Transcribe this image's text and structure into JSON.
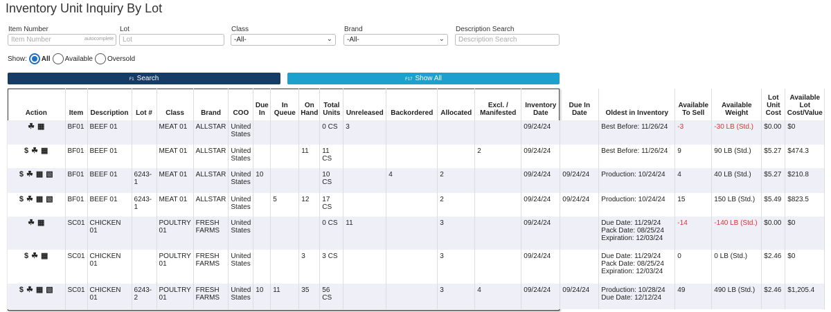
{
  "page_title": "Inventory Unit Inquiry By Lot",
  "filters": {
    "item_number": {
      "label": "Item Number",
      "placeholder": "Item Number",
      "hint": "autocomplete"
    },
    "lot": {
      "label": "Lot",
      "placeholder": "Lot"
    },
    "class": {
      "label": "Class",
      "value": "-All-"
    },
    "brand": {
      "label": "Brand",
      "value": "-All-"
    },
    "description": {
      "label": "Description Search",
      "placeholder": "Description Search"
    }
  },
  "show": {
    "label": "Show:",
    "options": [
      "All",
      "Available",
      "Oversold"
    ]
  },
  "buttons": {
    "search_key": "F1",
    "search": "Search",
    "showall_key": "F17",
    "showall": "Show All"
  },
  "columns": [
    "Action",
    "Item",
    "Description",
    "Lot #",
    "Class",
    "Brand",
    "COO",
    "Due In",
    "In Queue",
    "On Hand",
    "Total Units",
    "Unreleased",
    "Backordered",
    "Allocated",
    "Excl. / Manifested",
    "Inventory Date",
    "Due In Date",
    "Oldest in Inventory",
    "Available To Sell",
    "Available Weight",
    "Lot Unit Cost",
    "Available Lot Cost/Value"
  ],
  "rows": [
    {
      "actions": [
        "link-icon",
        "calendar-icon"
      ],
      "item": "BF01",
      "desc": "BEEF 01",
      "lot": "",
      "class": "MEAT 01",
      "brand": "ALLSTAR",
      "coo": "United States",
      "due_in": "",
      "in_queue": "",
      "on_hand": "",
      "total": "0 CS",
      "unreleased": "3",
      "backordered": "",
      "allocated": "",
      "excl": "",
      "inv_date": "09/24/24",
      "due_date": "",
      "oldest": "Best Before: 11/26/24",
      "ats": "-3",
      "weight": "-30 LB (Std.)",
      "cost": "$0.00",
      "value": "$0",
      "neg": true
    },
    {
      "actions": [
        "dollar-icon",
        "link-icon",
        "calendar-icon"
      ],
      "item": "BF01",
      "desc": "BEEF 01",
      "lot": "",
      "class": "MEAT 01",
      "brand": "ALLSTAR",
      "coo": "United States",
      "due_in": "",
      "in_queue": "",
      "on_hand": "11",
      "total": "11 CS",
      "unreleased": "",
      "backordered": "",
      "allocated": "",
      "excl": "2",
      "inv_date": "09/24/24",
      "due_date": "",
      "oldest": "Best Before: 11/26/24",
      "ats": "9",
      "weight": "90 LB (Std.)",
      "cost": "$5.27",
      "value": "$474.3",
      "neg": false
    },
    {
      "actions": [
        "dollar-icon",
        "link-icon",
        "calendar-icon",
        "calendar-plus-icon"
      ],
      "item": "BF01",
      "desc": "BEEF 01",
      "lot": "6243-1",
      "class": "MEAT 01",
      "brand": "ALLSTAR",
      "coo": "United States",
      "due_in": "10",
      "in_queue": "",
      "on_hand": "",
      "total": "10 CS",
      "unreleased": "",
      "backordered": "4",
      "allocated": "2",
      "excl": "",
      "inv_date": "09/24/24",
      "due_date": "09/24/24",
      "oldest": "Production: 10/24/24",
      "ats": "4",
      "weight": "40 LB (Std.)",
      "cost": "$5.27",
      "value": "$210.8",
      "neg": false
    },
    {
      "actions": [
        "dollar-icon",
        "link-icon",
        "calendar-icon",
        "calendar-plus-icon"
      ],
      "item": "BF01",
      "desc": "BEEF 01",
      "lot": "6243-1",
      "class": "MEAT 01",
      "brand": "ALLSTAR",
      "coo": "United States",
      "due_in": "",
      "in_queue": "5",
      "on_hand": "12",
      "total": "17 CS",
      "unreleased": "",
      "backordered": "",
      "allocated": "2",
      "excl": "",
      "inv_date": "09/24/24",
      "due_date": "09/24/24",
      "oldest": "Production: 10/24/24",
      "ats": "15",
      "weight": "150 LB (Std.)",
      "cost": "$5.49",
      "value": "$823.5",
      "neg": false
    },
    {
      "actions": [
        "link-icon",
        "calendar-icon"
      ],
      "item": "SC01",
      "desc": "CHICKEN 01",
      "lot": "",
      "class": "POULTRY 01",
      "brand": "FRESH FARMS",
      "coo": "United States",
      "due_in": "",
      "in_queue": "",
      "on_hand": "",
      "total": "0 CS",
      "unreleased": "11",
      "backordered": "",
      "allocated": "3",
      "excl": "",
      "inv_date": "09/24/24",
      "due_date": "",
      "oldest": "Due Date: 11/29/24\nPack Date: 08/25/24\nExpiration: 12/03/24",
      "ats": "-14",
      "weight": "-140 LB (Std.)",
      "cost": "$0.00",
      "value": "$0",
      "neg": true
    },
    {
      "actions": [
        "dollar-icon",
        "link-icon",
        "calendar-icon"
      ],
      "item": "SC01",
      "desc": "CHICKEN 01",
      "lot": "",
      "class": "POULTRY 01",
      "brand": "FRESH FARMS",
      "coo": "United States",
      "due_in": "",
      "in_queue": "",
      "on_hand": "3",
      "total": "3 CS",
      "unreleased": "",
      "backordered": "",
      "allocated": "3",
      "excl": "",
      "inv_date": "09/24/24",
      "due_date": "",
      "oldest": "Due Date: 11/29/24\nPack Date: 08/25/24\nExpiration: 12/03/24",
      "ats": "0",
      "weight": "0 LB (Std.)",
      "cost": "$2.46",
      "value": "$0",
      "neg": false
    },
    {
      "actions": [
        "dollar-icon",
        "link-icon",
        "calendar-icon",
        "calendar-plus-icon"
      ],
      "item": "SC01",
      "desc": "CHICKEN 01",
      "lot": "6243-2",
      "class": "POULTRY 01",
      "brand": "FRESH FARMS",
      "coo": "United States",
      "due_in": "10",
      "in_queue": "11",
      "on_hand": "35",
      "total": "56 CS",
      "unreleased": "",
      "backordered": "",
      "allocated": "3",
      "excl": "4",
      "inv_date": "09/24/24",
      "due_date": "09/24/24",
      "oldest": "Production: 10/28/24\nDue Date: 12/12/24",
      "ats": "49",
      "weight": "490 LB (Std.)",
      "cost": "$2.46",
      "value": "$1,205.4",
      "neg": false
    }
  ]
}
